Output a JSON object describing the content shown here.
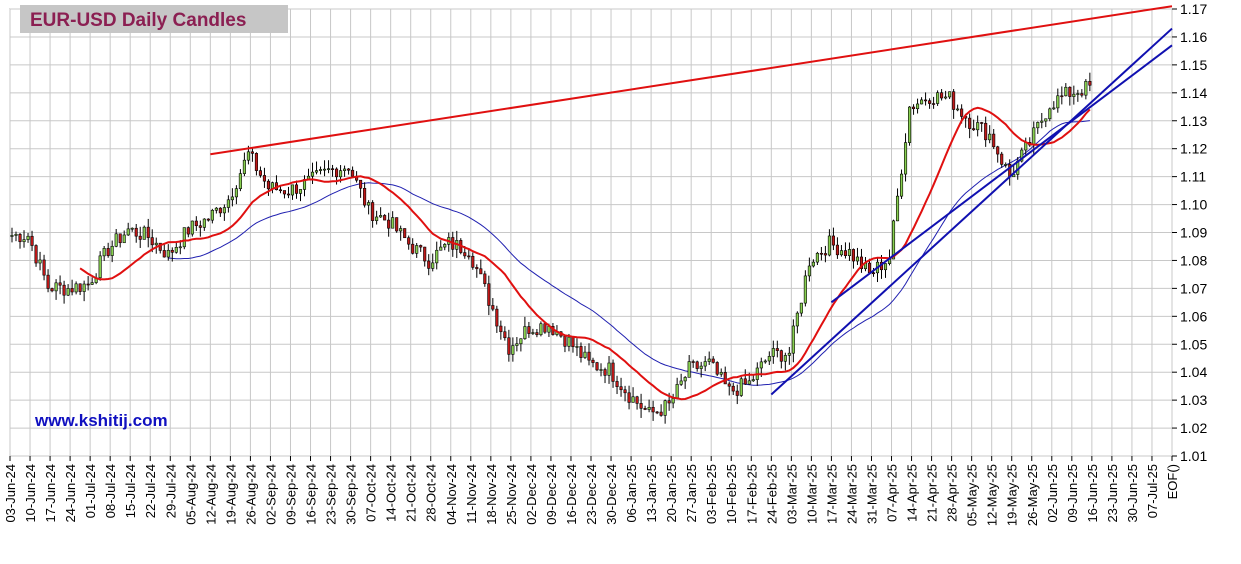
{
  "chart_data": {
    "type": "candlestick",
    "title": "EUR-USD Daily  Candles",
    "watermark": "www.kshitij.com",
    "ylim": [
      1.01,
      1.17
    ],
    "y_ticks": [
      "1.17",
      "1.16",
      "1.15",
      "1.14",
      "1.13",
      "1.12",
      "1.11",
      "1.10",
      "1.09",
      "1.08",
      "1.07",
      "1.06",
      "1.05",
      "1.04",
      "1.03",
      "1.02",
      "1.01"
    ],
    "x_ticks": [
      "03-Jun-24",
      "10-Jun-24",
      "17-Jun-24",
      "24-Jun-24",
      "01-Jul-24",
      "08-Jul-24",
      "15-Jul-24",
      "22-Jul-24",
      "29-Jul-24",
      "05-Aug-24",
      "12-Aug-24",
      "19-Aug-24",
      "26-Aug-24",
      "02-Sep-24",
      "09-Sep-24",
      "16-Sep-24",
      "23-Sep-24",
      "30-Sep-24",
      "07-Oct-24",
      "14-Oct-24",
      "21-Oct-24",
      "28-Oct-24",
      "04-Nov-24",
      "11-Nov-24",
      "18-Nov-24",
      "25-Nov-24",
      "02-Dec-24",
      "09-Dec-24",
      "16-Dec-24",
      "23-Dec-24",
      "30-Dec-24",
      "06-Jan-25",
      "13-Jan-25",
      "20-Jan-25",
      "27-Jan-25",
      "03-Feb-25",
      "10-Feb-25",
      "17-Feb-25",
      "24-Feb-25",
      "03-Mar-25",
      "10-Mar-25",
      "17-Mar-25",
      "24-Mar-25",
      "31-Mar-25",
      "07-Apr-25",
      "14-Apr-25",
      "21-Apr-25",
      "28-Apr-25",
      "05-May-25",
      "12-May-25",
      "19-May-25",
      "26-May-25",
      "02-Jun-25",
      "09-Jun-25",
      "16-Jun-25",
      "23-Jun-25",
      "30-Jun-25",
      "07-Jul-25",
      "EOF()"
    ],
    "weekly_closes": [
      1.089,
      1.0705,
      1.07,
      1.0715,
      1.084,
      1.091,
      1.0885,
      1.082,
      1.091,
      1.095,
      1.102,
      1.118,
      1.106,
      1.105,
      1.108,
      1.112,
      1.114,
      1.098,
      1.094,
      1.086,
      1.08,
      1.086,
      1.084,
      1.066,
      1.049,
      1.056,
      1.057,
      1.051,
      1.043,
      1.041,
      1.032,
      1.025,
      1.028,
      1.041,
      1.043,
      1.033,
      1.036,
      1.046,
      1.047,
      1.08,
      1.086,
      1.083,
      1.075,
      1.081,
      1.135,
      1.139,
      1.138,
      1.13,
      1.125,
      1.11,
      1.122,
      1.136,
      1.14,
      1.142
    ],
    "series": [
      {
        "name": "",
        "color": "#e01010",
        "kind": "fast-moving-average"
      },
      {
        "name": "",
        "color": "#2020b0",
        "kind": "slow-moving-average"
      }
    ],
    "trendlines": [
      {
        "color": "#e01010",
        "from": {
          "x": "12-Aug-24",
          "y": 1.118
        },
        "to": {
          "x": "EOF()",
          "y": 1.171
        }
      },
      {
        "color": "#1010b0",
        "from": {
          "x": "24-Feb-25",
          "y": 1.032
        },
        "to": {
          "x": "EOF()",
          "y": 1.163
        }
      },
      {
        "color": "#1010b0",
        "from": {
          "x": "17-Mar-25",
          "y": 1.065
        },
        "to": {
          "x": "EOF()",
          "y": 1.157
        }
      }
    ],
    "grid": true,
    "up_color": "#88d050",
    "down_color": "#c01818"
  }
}
